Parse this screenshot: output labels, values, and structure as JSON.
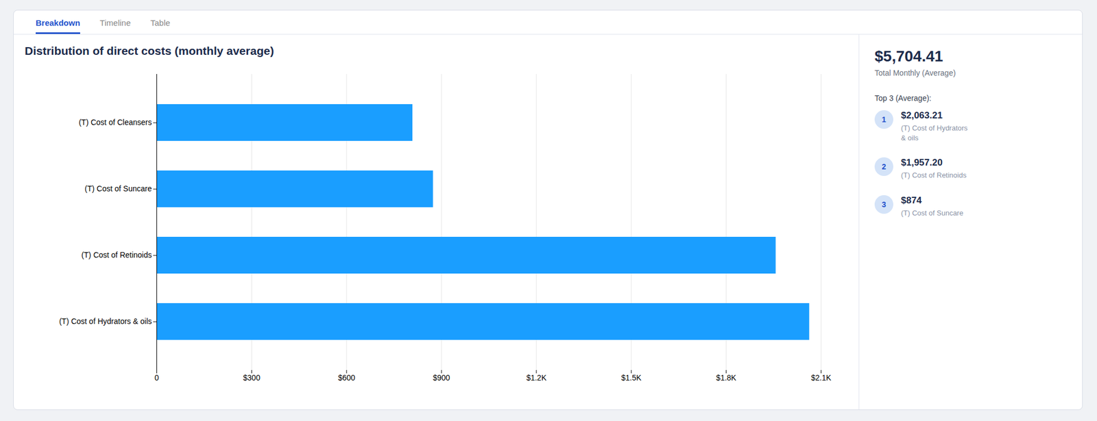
{
  "chart_data": {
    "type": "bar",
    "orientation": "horizontal",
    "title": "Distribution of direct costs (monthly average)",
    "categories": [
      "(T) Cost of Cleansers",
      "(T) Cost of Suncare",
      "(T) Cost of Retinoids",
      "(T) Cost of Hydrators & oils"
    ],
    "values": [
      809,
      874,
      1957.2,
      2063.21
    ],
    "color": "#1A9EFF",
    "xlim": [
      0,
      2100
    ],
    "xticks": [
      0,
      {
        "value": 300,
        "label": "$300"
      },
      {
        "value": 600,
        "label": "$600"
      },
      {
        "value": 900,
        "label": "$900"
      },
      {
        "value": 1200,
        "label": "$1.2K"
      },
      {
        "value": 1500,
        "label": "$1.5K"
      },
      {
        "value": 1800,
        "label": "$1.8K"
      },
      {
        "value": 2100,
        "label": "$2.1K"
      }
    ],
    "grid": true,
    "annotations": [
      "Breakdown",
      "Timeline",
      "Table",
      "$5,704.41",
      "Total Monthly (Average)",
      "Top 3 (Average):",
      "1",
      "$2,063.21",
      "(T) Cost of Hydrators\n& oils",
      "2",
      "$1,957.20",
      "(T) Cost of Retinoids",
      "3",
      "$874",
      "(T) Cost of Suncare"
    ]
  }
}
